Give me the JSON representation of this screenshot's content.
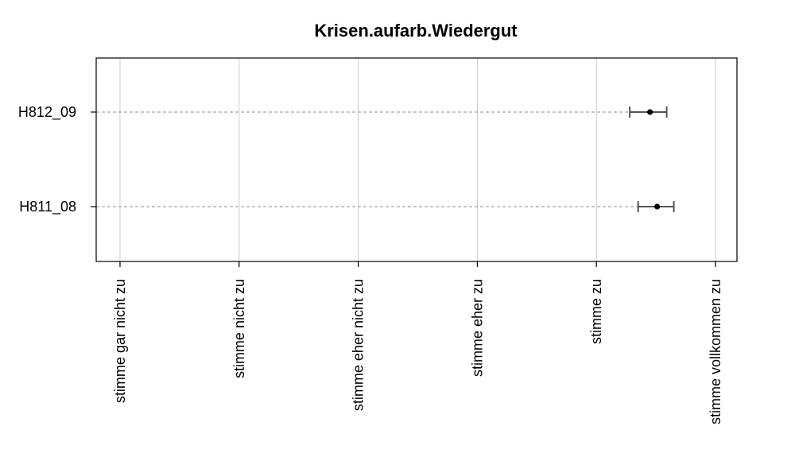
{
  "chart_data": {
    "type": "dot-errorbar",
    "title": "Krisen.aufarb.Wiedergut",
    "x_categories": [
      "stimme gar nicht zu",
      "stimme nicht zu",
      "stimme eher nicht zu",
      "stimme eher zu",
      "stimme zu",
      "stimme vollkommen zu"
    ],
    "xlim": [
      0.8,
      6.18
    ],
    "x_ticks": [
      1,
      2,
      3,
      4,
      5,
      6
    ],
    "series": [
      {
        "label": "H812_09",
        "mean": 5.45,
        "lower": 5.28,
        "upper": 5.59
      },
      {
        "label": "H811_08",
        "mean": 5.51,
        "lower": 5.35,
        "upper": 5.65
      }
    ],
    "grid": true
  }
}
